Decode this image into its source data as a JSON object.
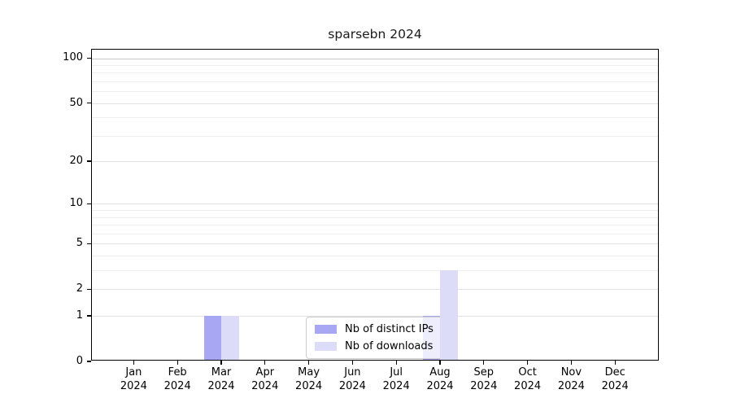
{
  "chart_data": {
    "type": "bar",
    "title": "sparsebn 2024",
    "year": "2024",
    "months": [
      "Jan",
      "Feb",
      "Mar",
      "Apr",
      "May",
      "Jun",
      "Jul",
      "Aug",
      "Sep",
      "Oct",
      "Nov",
      "Dec"
    ],
    "series": [
      {
        "name": "Nb of distinct IPs",
        "color": "#a7a7f3",
        "values": [
          0,
          0,
          1,
          0,
          0,
          0,
          0,
          1,
          0,
          0,
          0,
          0
        ]
      },
      {
        "name": "Nb of downloads",
        "color": "#dcdcf9",
        "values": [
          0,
          0,
          1,
          0,
          0,
          0,
          0,
          3,
          0,
          0,
          0,
          0
        ]
      }
    ],
    "y_axis": {
      "scale": "log1p",
      "ticks": [
        0,
        1,
        2,
        5,
        10,
        20,
        50,
        100
      ],
      "minor_gridlines": [
        3,
        4,
        6,
        7,
        8,
        9,
        30,
        40,
        60,
        70,
        80,
        90
      ],
      "max_tick": 100
    },
    "legend_position": "bottom-center",
    "grid": true
  },
  "colors": {
    "grid_major": "#e2e2e2",
    "grid_minor": "#efefef",
    "grid_top_major": "#c8c8c8",
    "frame": "#000000",
    "background": "#ffffff"
  }
}
